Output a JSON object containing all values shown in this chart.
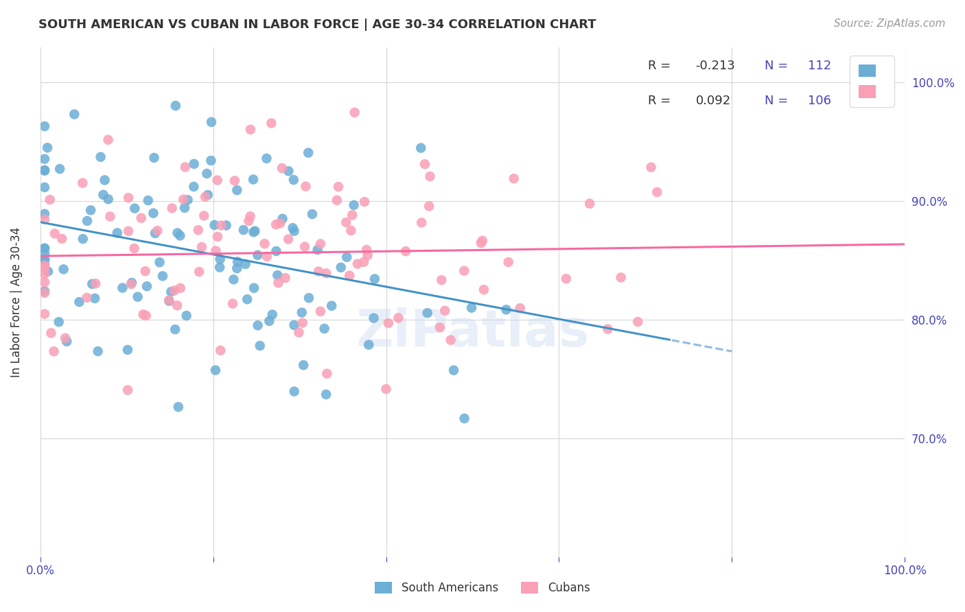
{
  "title": "SOUTH AMERICAN VS CUBAN IN LABOR FORCE | AGE 30-34 CORRELATION CHART",
  "source": "Source: ZipAtlas.com",
  "ylabel": "In Labor Force | Age 30-34",
  "xlim": [
    0.0,
    1.0
  ],
  "ylim": [
    0.6,
    1.03
  ],
  "x_tick_positions": [
    0.0,
    0.2,
    0.4,
    0.6,
    0.8,
    1.0
  ],
  "x_tick_labels": [
    "0.0%",
    "",
    "",
    "",
    "",
    "100.0%"
  ],
  "y_tick_positions": [
    0.7,
    0.8,
    0.9,
    1.0
  ],
  "y_tick_labels_right": [
    "70.0%",
    "80.0%",
    "90.0%",
    "100.0%"
  ],
  "legend_r1": "-0.213",
  "legend_n1": "112",
  "legend_r2": "0.092",
  "legend_n2": "106",
  "blue_color": "#6baed6",
  "pink_color": "#fa9fb5",
  "line_blue": "#4292c6",
  "line_pink": "#f768a1",
  "background_color": "#ffffff",
  "grid_color": "#cccccc",
  "watermark": "ZiPatlas",
  "title_color": "#333333",
  "source_color": "#999999",
  "label_color": "#333333",
  "tick_color": "#4444bb",
  "legend_text_color": "#333333",
  "n_color": "#4444bb",
  "sa_n": 112,
  "cu_n": 106,
  "sa_r": -0.213,
  "cu_r": 0.092
}
